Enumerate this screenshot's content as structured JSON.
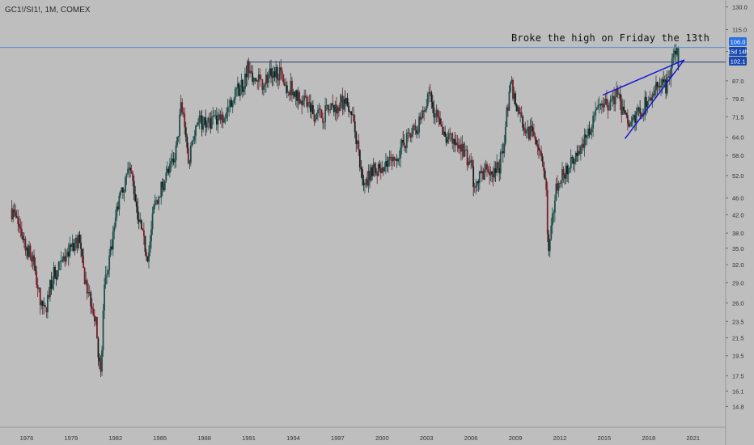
{
  "header": {
    "symbol": "GC1!/SI1!, 1M, COMEX"
  },
  "annotation": {
    "text": "Broke the high on Friday the 13th"
  },
  "price_tags": {
    "high_line": "106.0",
    "countdown": "15d 14h",
    "last_price": "102.1"
  },
  "colors": {
    "up": "#1f4f4a",
    "down": "#7a1d2a",
    "neutral": "#1c1c1c",
    "axis_text": "#333333",
    "hline_blue": "#4a90e2",
    "wedge": "#1111dd",
    "tag_blue": "#2a73e0",
    "tag_navy": "#1848b0"
  },
  "chart_data": {
    "type": "candlestick",
    "title": "",
    "xlabel": "",
    "ylabel": "",
    "y_scale": "log",
    "ylim": [
      13.4,
      135
    ],
    "xlim": [
      1974.2,
      2023.2
    ],
    "y_ticks": [
      "130.0",
      "115.0",
      "102.1",
      "87.0",
      "79.0",
      "71.5",
      "64.0",
      "58.0",
      "52.0",
      "46.0",
      "42.0",
      "38.0",
      "35.0",
      "32.0",
      "29.0",
      "26.0",
      "23.5",
      "21.5",
      "19.5",
      "17.5",
      "16.1",
      "14.8"
    ],
    "x_ticks": [
      "1976",
      "1979",
      "1982",
      "1985",
      "1988",
      "1991",
      "1994",
      "1997",
      "2000",
      "2003",
      "2006",
      "2009",
      "2012",
      "2015",
      "2018",
      "2021"
    ],
    "price_path": [
      [
        1975.0,
        43.5
      ],
      [
        1975.5,
        40.0
      ],
      [
        1976.0,
        36.0
      ],
      [
        1976.5,
        32.5
      ],
      [
        1977.0,
        26.5
      ],
      [
        1977.3,
        24.5
      ],
      [
        1977.8,
        30.0
      ],
      [
        1978.5,
        32.0
      ],
      [
        1979.0,
        34.5
      ],
      [
        1979.6,
        37.0
      ],
      [
        1979.9,
        31.0
      ],
      [
        1980.2,
        28.0
      ],
      [
        1980.5,
        26.0
      ],
      [
        1980.8,
        22.5
      ],
      [
        1981.0,
        18.5
      ],
      [
        1981.1,
        17.2
      ],
      [
        1981.3,
        28.0
      ],
      [
        1981.7,
        33.0
      ],
      [
        1982.2,
        44.0
      ],
      [
        1982.6,
        48.0
      ],
      [
        1983.0,
        55.0
      ],
      [
        1983.3,
        49.0
      ],
      [
        1983.7,
        40.0
      ],
      [
        1984.0,
        36.0
      ],
      [
        1984.3,
        33.5
      ],
      [
        1984.7,
        44.0
      ],
      [
        1985.3,
        50.0
      ],
      [
        1985.8,
        54.0
      ],
      [
        1986.2,
        60.0
      ],
      [
        1986.5,
        75.0
      ],
      [
        1986.8,
        68.0
      ],
      [
        1987.0,
        55.0
      ],
      [
        1987.3,
        65.0
      ],
      [
        1987.7,
        72.0
      ],
      [
        1988.0,
        68.0
      ],
      [
        1988.5,
        70.0
      ],
      [
        1989.0,
        72.0
      ],
      [
        1989.5,
        72.0
      ],
      [
        1990.0,
        80.0
      ],
      [
        1990.5,
        84.0
      ],
      [
        1990.8,
        87.0
      ],
      [
        1991.0,
        95.0
      ],
      [
        1991.4,
        88.0
      ],
      [
        1992.0,
        86.0
      ],
      [
        1992.5,
        90.0
      ],
      [
        1993.0,
        92.0
      ],
      [
        1993.5,
        86.0
      ],
      [
        1994.0,
        83.0
      ],
      [
        1994.5,
        80.0
      ],
      [
        1995.0,
        76.0
      ],
      [
        1995.5,
        73.0
      ],
      [
        1996.0,
        72.0
      ],
      [
        1996.5,
        74.0
      ],
      [
        1997.0,
        76.0
      ],
      [
        1997.5,
        78.0
      ],
      [
        1998.0,
        74.0
      ],
      [
        1998.5,
        60.0
      ],
      [
        1998.8,
        48.0
      ],
      [
        1999.0,
        50.0
      ],
      [
        1999.5,
        55.0
      ],
      [
        2000.0,
        52.0
      ],
      [
        2000.5,
        55.0
      ],
      [
        2001.0,
        57.0
      ],
      [
        2001.5,
        62.0
      ],
      [
        2002.0,
        65.0
      ],
      [
        2002.5,
        68.0
      ],
      [
        2003.0,
        75.0
      ],
      [
        2003.3,
        80.0
      ],
      [
        2003.7,
        72.0
      ],
      [
        2004.2,
        64.0
      ],
      [
        2004.6,
        63.0
      ],
      [
        2005.0,
        62.0
      ],
      [
        2005.5,
        60.0
      ],
      [
        2006.0,
        56.0
      ],
      [
        2006.3,
        50.0
      ],
      [
        2006.8,
        52.0
      ],
      [
        2007.2,
        54.0
      ],
      [
        2007.5,
        52.0
      ],
      [
        2008.0,
        55.0
      ],
      [
        2008.3,
        62.0
      ],
      [
        2008.6,
        78.0
      ],
      [
        2008.8,
        86.0
      ],
      [
        2009.0,
        80.0
      ],
      [
        2009.5,
        70.0
      ],
      [
        2010.0,
        66.0
      ],
      [
        2010.5,
        64.0
      ],
      [
        2010.9,
        58.0
      ],
      [
        2011.2,
        46.0
      ],
      [
        2011.3,
        33.0
      ],
      [
        2011.5,
        38.0
      ],
      [
        2011.8,
        48.0
      ],
      [
        2012.2,
        52.0
      ],
      [
        2012.6,
        54.0
      ],
      [
        2013.0,
        56.0
      ],
      [
        2013.5,
        60.0
      ],
      [
        2014.0,
        66.0
      ],
      [
        2014.5,
        72.0
      ],
      [
        2015.0,
        75.0
      ],
      [
        2015.5,
        78.0
      ],
      [
        2016.0,
        80.0
      ],
      [
        2016.3,
        74.0
      ],
      [
        2016.7,
        68.0
      ],
      [
        2017.0,
        70.0
      ],
      [
        2017.5,
        74.0
      ],
      [
        2018.0,
        78.0
      ],
      [
        2018.5,
        83.0
      ],
      [
        2019.0,
        88.0
      ],
      [
        2019.2,
        84.0
      ],
      [
        2019.5,
        90.0
      ],
      [
        2019.7,
        96.0
      ],
      [
        2019.85,
        104.0
      ],
      [
        2019.92,
        102.1
      ]
    ],
    "annotations": {
      "horizontal_levels": [
        104.3,
        96.3
      ],
      "wedge_upper": [
        [
          2014.9,
          80.5
        ],
        [
          2020.4,
          97.5
        ]
      ],
      "wedge_lower": [
        [
          2016.4,
          63.5
        ],
        [
          2020.4,
          97.5
        ]
      ],
      "note": "Broke the high on Friday the 13th"
    }
  }
}
